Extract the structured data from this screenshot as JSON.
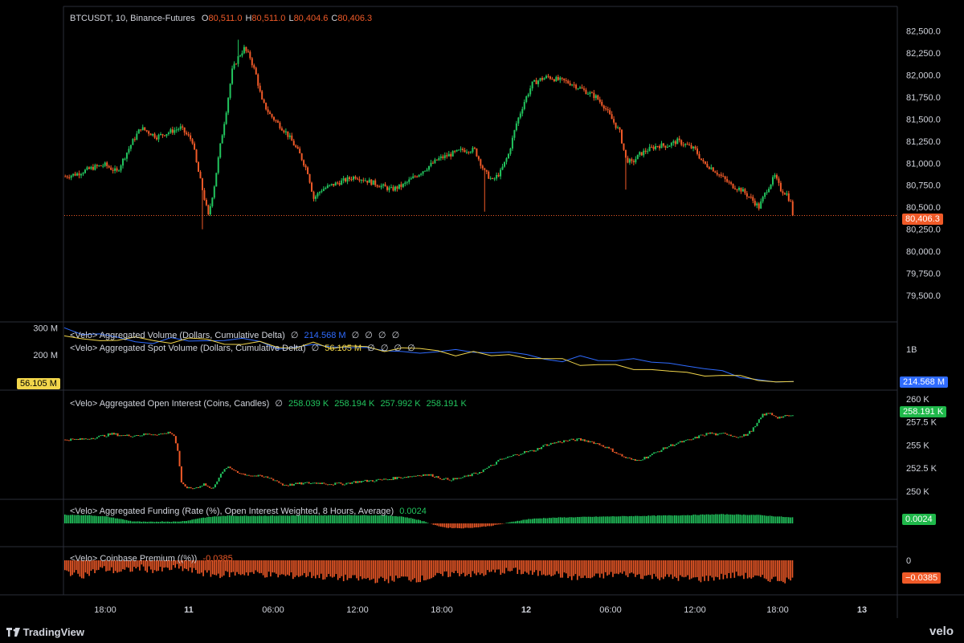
{
  "main": {
    "symbol": "BTCUSDT, 10, Binance-Futures",
    "o_label": "O",
    "o": "80,511.0",
    "h_label": "H",
    "h": "80,511.0",
    "l_label": "L",
    "l": "80,404.6",
    "c_label": "C",
    "c": "80,406.3",
    "last_price": "80,406.3",
    "last_price_color": "#f05a28"
  },
  "volume_pane": {
    "line1_label": "<Velo> Aggregated Volume (Dollars, Cumulative Delta)",
    "line1_value": "214.568 M",
    "line2_label": "<Velo> Aggregated Spot Volume (Dollars, Cumulative Delta)",
    "line2_value": "56.105 M",
    "empty_glyph": "∅",
    "right_tick": "1B",
    "badge_blue": "214.568 M",
    "badge_yellow": "56.105 M"
  },
  "oi_pane": {
    "label": "<Velo> Aggregated Open Interest (Coins, Candles)",
    "values": [
      "258.039 K",
      "258.194 K",
      "257.992 K",
      "258.191 K"
    ],
    "badge": "258.191 K"
  },
  "funding_pane": {
    "label": "<Velo> Aggregated Funding (Rate (%), Open Interest Weighted, 8 Hours, Average)",
    "value": "0.0024",
    "badge": "0.0024"
  },
  "premium_pane": {
    "label": "<Velo> Coinbase Premium ((%))",
    "value": "-0.0385",
    "zero_tick": "0",
    "badge": "−0.0385"
  },
  "footer": {
    "brand": "TradingView",
    "brand2": "velo"
  },
  "chart_data": [
    {
      "type": "candlestick",
      "title": "BTCUSDT, 10, Binance-Futures",
      "ylim": [
        79300,
        82650
      ],
      "yticks": [
        "82,500.0",
        "82,250.0",
        "82,000.0",
        "81,750.0",
        "81,500.0",
        "81,250.0",
        "81,000.0",
        "80,750.0",
        "80,500.0",
        "80,250.0",
        "80,000.0",
        "79,750.0",
        "79,500.0"
      ],
      "ytick_values": [
        82500,
        82250,
        82000,
        81750,
        81500,
        81250,
        81000,
        80750,
        80500,
        80250,
        80000,
        79750,
        79500
      ],
      "xticks": [
        "18:00",
        "11",
        "06:00",
        "12:00",
        "18:00",
        "12",
        "06:00",
        "12:00",
        "18:00",
        "13"
      ],
      "bold_xticks": [
        "11",
        "12",
        "13"
      ],
      "path": [
        [
          0,
          80850
        ],
        [
          6,
          80880
        ],
        [
          14,
          80950
        ],
        [
          20,
          80980
        ],
        [
          26,
          80900
        ],
        [
          30,
          81080
        ],
        [
          34,
          81250
        ],
        [
          38,
          81400
        ],
        [
          42,
          81350
        ],
        [
          46,
          81300
        ],
        [
          52,
          81350
        ],
        [
          58,
          81400
        ],
        [
          62,
          81300
        ],
        [
          64,
          81250
        ],
        [
          66,
          81000
        ],
        [
          69,
          80700
        ],
        [
          72,
          80400
        ],
        [
          75,
          80750
        ],
        [
          78,
          81200
        ],
        [
          81,
          81600
        ],
        [
          84,
          82050
        ],
        [
          87,
          82200
        ],
        [
          90,
          82300
        ],
        [
          93,
          82200
        ],
        [
          96,
          82000
        ],
        [
          99,
          81700
        ],
        [
          103,
          81550
        ],
        [
          107,
          81450
        ],
        [
          111,
          81350
        ],
        [
          114,
          81250
        ],
        [
          118,
          81100
        ],
        [
          122,
          80900
        ],
        [
          125,
          80600
        ],
        [
          129,
          80700
        ],
        [
          134,
          80750
        ],
        [
          140,
          80800
        ],
        [
          146,
          80850
        ],
        [
          152,
          80800
        ],
        [
          158,
          80750
        ],
        [
          164,
          80700
        ],
        [
          170,
          80750
        ],
        [
          176,
          80850
        ],
        [
          182,
          80950
        ],
        [
          188,
          81050
        ],
        [
          194,
          81100
        ],
        [
          200,
          81150
        ],
        [
          206,
          81150
        ],
        [
          211,
          80900
        ],
        [
          215,
          80800
        ],
        [
          219,
          80900
        ],
        [
          223,
          81100
        ],
        [
          227,
          81450
        ],
        [
          231,
          81700
        ],
        [
          235,
          81900
        ],
        [
          239,
          81950
        ],
        [
          243,
          81980
        ],
        [
          247,
          81950
        ],
        [
          251,
          81930
        ],
        [
          255,
          81900
        ],
        [
          259,
          81850
        ],
        [
          263,
          81800
        ],
        [
          267,
          81750
        ],
        [
          271,
          81650
        ],
        [
          275,
          81500
        ],
        [
          279,
          81350
        ],
        [
          282,
          81050
        ],
        [
          285,
          81000
        ],
        [
          289,
          81100
        ],
        [
          293,
          81150
        ],
        [
          298,
          81200
        ],
        [
          303,
          81200
        ],
        [
          308,
          81250
        ],
        [
          313,
          81200
        ],
        [
          317,
          81150
        ],
        [
          321,
          81000
        ],
        [
          325,
          80950
        ],
        [
          330,
          80850
        ],
        [
          335,
          80750
        ],
        [
          340,
          80700
        ],
        [
          345,
          80600
        ],
        [
          349,
          80500
        ],
        [
          353,
          80700
        ],
        [
          357,
          80850
        ],
        [
          360,
          80700
        ],
        [
          363,
          80650
        ],
        [
          365,
          80550
        ],
        [
          366,
          80406
        ]
      ],
      "path_x_range": [
        0,
        366
      ],
      "wicks": [
        [
          69,
          80250
        ],
        [
          87,
          82400
        ],
        [
          211,
          80450
        ],
        [
          282,
          80700
        ],
        [
          366,
          80400
        ]
      ]
    },
    {
      "type": "line",
      "title": "<Velo> Aggregated Volume (Dollars, Cumulative Delta)",
      "series": [
        {
          "name": "<Velo> Aggregated Volume (Dollars, Cumulative Delta)",
          "color": "#2f6bff",
          "values": [
            300,
            285,
            270,
            260,
            240,
            250,
            262,
            248,
            240,
            245,
            250,
            238,
            232,
            228,
            235,
            222,
            220,
            225,
            210,
            215,
            208,
            215,
            210,
            205,
            212,
            200,
            190,
            192,
            185,
            188,
            180,
            170,
            175,
            165,
            160,
            150,
            140,
            135,
            125,
            118,
            110,
            100
          ]
        },
        {
          "name": "<Velo> Aggregated Spot Volume (Dollars, Cumulative Delta)",
          "color": "#f2d64b",
          "values": [
            270,
            265,
            262,
            258,
            255,
            252,
            250,
            255,
            248,
            245,
            242,
            240,
            238,
            232,
            235,
            230,
            225,
            222,
            218,
            215,
            212,
            208,
            205,
            200,
            198,
            192,
            186,
            180,
            178,
            170,
            168,
            162,
            150,
            140,
            135,
            130,
            120,
            118,
            112,
            108,
            104,
            100
          ]
        }
      ],
      "yticks": [
        "300 M",
        "200 M",
        "100 M"
      ],
      "right_tick": "1B",
      "ylim": [
        80,
        310
      ]
    },
    {
      "type": "candlestick",
      "title": "<Velo> Aggregated Open Interest (Coins, Candles)",
      "yticks": [
        "260 K",
        "257.5 K",
        "255 K",
        "252.5 K",
        "250 K"
      ],
      "ytick_values": [
        260,
        257.5,
        255,
        252.5,
        250
      ],
      "ylim": [
        249.3,
        260.6
      ],
      "path": [
        [
          0,
          255.6
        ],
        [
          8,
          255.6
        ],
        [
          15,
          255.8
        ],
        [
          20,
          256.0
        ],
        [
          25,
          256.2
        ],
        [
          32,
          256.0
        ],
        [
          40,
          256.1
        ],
        [
          46,
          256.2
        ],
        [
          52,
          256.2
        ],
        [
          56,
          256.4
        ],
        [
          58,
          256.0
        ],
        [
          60,
          254.4
        ],
        [
          62,
          250.8
        ],
        [
          66,
          250.3
        ],
        [
          70,
          250.4
        ],
        [
          74,
          250.8
        ],
        [
          78,
          250.2
        ],
        [
          82,
          251.5
        ],
        [
          86,
          252.6
        ],
        [
          90,
          252.3
        ],
        [
          94,
          251.9
        ],
        [
          100,
          251.7
        ],
        [
          104,
          251.6
        ],
        [
          108,
          251.5
        ],
        [
          112,
          251.2
        ],
        [
          116,
          250.7
        ],
        [
          120,
          250.7
        ],
        [
          124,
          250.8
        ],
        [
          130,
          250.9
        ],
        [
          136,
          250.9
        ],
        [
          142,
          250.8
        ],
        [
          148,
          250.8
        ],
        [
          154,
          251.0
        ],
        [
          160,
          251.1
        ],
        [
          166,
          251.2
        ],
        [
          172,
          251.3
        ],
        [
          178,
          251.5
        ],
        [
          184,
          251.6
        ],
        [
          190,
          251.8
        ],
        [
          196,
          251.7
        ],
        [
          202,
          251.3
        ],
        [
          208,
          251.3
        ],
        [
          214,
          251.6
        ],
        [
          220,
          252.0
        ],
        [
          226,
          252.6
        ],
        [
          232,
          253.4
        ],
        [
          238,
          253.8
        ],
        [
          244,
          254.2
        ],
        [
          250,
          254.4
        ],
        [
          256,
          255.0
        ],
        [
          262,
          255.3
        ],
        [
          268,
          255.5
        ],
        [
          274,
          255.6
        ],
        [
          280,
          255.4
        ],
        [
          286,
          255.0
        ],
        [
          292,
          254.4
        ],
        [
          298,
          253.7
        ],
        [
          304,
          253.3
        ],
        [
          310,
          253.7
        ],
        [
          316,
          254.3
        ],
        [
          322,
          254.9
        ],
        [
          328,
          255.3
        ],
        [
          334,
          255.6
        ],
        [
          340,
          256.1
        ],
        [
          344,
          256.3
        ],
        [
          348,
          256.1
        ],
        [
          352,
          256.3
        ],
        [
          356,
          256.0
        ],
        [
          360,
          255.9
        ],
        [
          364,
          256.2
        ],
        [
          368,
          257.0
        ],
        [
          372,
          258.3
        ],
        [
          376,
          258.4
        ],
        [
          380,
          258.0
        ],
        [
          384,
          258.1
        ],
        [
          388,
          258.19
        ]
      ],
      "path_x_range": [
        0,
        388
      ]
    },
    {
      "type": "bar",
      "title": "<Velo> Aggregated Funding (Rate (%), Open Interest Weighted, 8 Hours, Average)",
      "value": 0.0024,
      "shape": [
        [
          0,
          0.9
        ],
        [
          12,
          0.85
        ],
        [
          22,
          0.72
        ],
        [
          30,
          0.45
        ],
        [
          36,
          0.22
        ],
        [
          44,
          0.15
        ],
        [
          52,
          0.2
        ],
        [
          60,
          0.18
        ],
        [
          66,
          0.3
        ],
        [
          72,
          0.55
        ],
        [
          80,
          0.72
        ],
        [
          88,
          0.8
        ],
        [
          96,
          0.78
        ],
        [
          110,
          0.8
        ],
        [
          130,
          0.82
        ],
        [
          150,
          0.85
        ],
        [
          170,
          0.84
        ],
        [
          180,
          0.72
        ],
        [
          186,
          0.5
        ],
        [
          192,
          0.22
        ],
        [
          198,
          -0.2
        ],
        [
          204,
          -0.45
        ],
        [
          212,
          -0.5
        ],
        [
          220,
          -0.42
        ],
        [
          228,
          -0.25
        ],
        [
          234,
          -0.05
        ],
        [
          240,
          0.2
        ],
        [
          248,
          0.45
        ],
        [
          256,
          0.55
        ],
        [
          266,
          0.62
        ],
        [
          280,
          0.68
        ],
        [
          300,
          0.75
        ],
        [
          330,
          0.85
        ],
        [
          350,
          0.95
        ],
        [
          370,
          0.88
        ],
        [
          388,
          0.62
        ]
      ]
    },
    {
      "type": "bar",
      "title": "<Velo> Coinbase Premium ((%))",
      "value": -0.0385,
      "yticks": [
        "0"
      ],
      "shape": [
        [
          0,
          -0.55
        ],
        [
          10,
          -0.7
        ],
        [
          20,
          -0.4
        ],
        [
          30,
          -0.55
        ],
        [
          40,
          -0.35
        ],
        [
          50,
          -0.5
        ],
        [
          60,
          -0.35
        ],
        [
          70,
          -0.55
        ],
        [
          80,
          -0.7
        ],
        [
          90,
          -0.65
        ],
        [
          100,
          -0.6
        ],
        [
          110,
          -0.7
        ],
        [
          120,
          -0.75
        ],
        [
          130,
          -0.7
        ],
        [
          140,
          -0.8
        ],
        [
          150,
          -0.85
        ],
        [
          160,
          -0.9
        ],
        [
          170,
          -0.95
        ],
        [
          180,
          -0.85
        ],
        [
          190,
          -0.9
        ],
        [
          200,
          -0.75
        ],
        [
          210,
          -0.6
        ],
        [
          220,
          -0.7
        ],
        [
          230,
          -0.55
        ],
        [
          240,
          -0.5
        ],
        [
          250,
          -0.65
        ],
        [
          260,
          -0.6
        ],
        [
          270,
          -0.8
        ],
        [
          280,
          -0.85
        ],
        [
          290,
          -0.7
        ],
        [
          300,
          -0.65
        ],
        [
          310,
          -0.75
        ],
        [
          320,
          -0.8
        ],
        [
          330,
          -0.85
        ],
        [
          340,
          -0.9
        ],
        [
          350,
          -0.8
        ],
        [
          360,
          -0.7
        ],
        [
          370,
          -0.85
        ],
        [
          380,
          -0.9
        ],
        [
          388,
          -0.95
        ]
      ]
    }
  ]
}
